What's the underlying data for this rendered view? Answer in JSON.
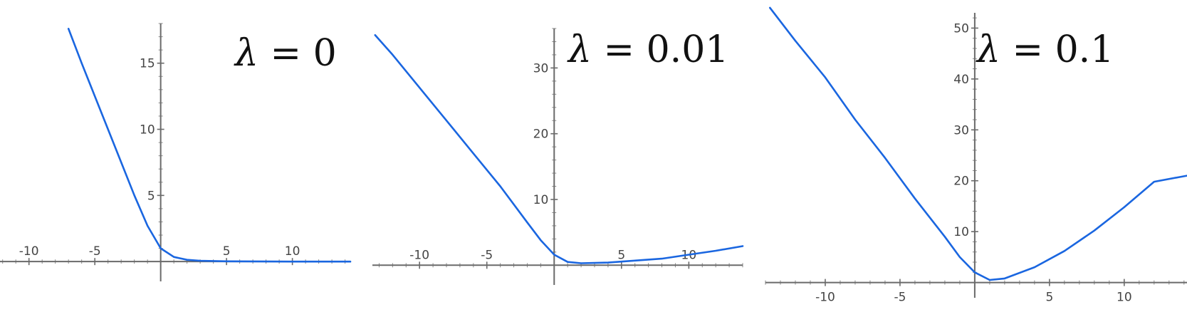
{
  "figure": {
    "curve_color": "#1a66e0"
  },
  "chart_data": [
    {
      "type": "line",
      "title": "λ = 0",
      "title_symbol": "λ",
      "title_rest": " = 0",
      "lambda": 0,
      "xlim": [
        -12.2,
        14.4
      ],
      "ylim": [
        -1.5,
        18.0
      ],
      "x_ticks": [
        -10,
        -5,
        5,
        10
      ],
      "x_tick_labels": [
        "-10",
        "-5",
        "5",
        "10"
      ],
      "y_ticks": [
        5,
        10,
        15
      ],
      "y_tick_labels": [
        "5",
        "10",
        "15"
      ],
      "series": [
        {
          "x": [
            -7,
            -6,
            -5,
            -4,
            -3,
            -2,
            -1,
            0,
            1,
            2,
            3,
            5,
            10,
            14.4
          ],
          "y": [
            17.6,
            15.0,
            12.5,
            10.0,
            7.5,
            5.0,
            2.7,
            1.0,
            0.35,
            0.13,
            0.06,
            0.02,
            0.0,
            0.0
          ]
        }
      ]
    },
    {
      "type": "line",
      "title": "λ = 0.01",
      "title_symbol": "λ",
      "title_rest": " = 0.01",
      "lambda": 0.01,
      "xlim": [
        -13.5,
        14.0
      ],
      "ylim": [
        -3.0,
        36.0
      ],
      "x_ticks": [
        -10,
        -5,
        5,
        10
      ],
      "x_tick_labels": [
        "-10",
        "-5",
        "5",
        "10"
      ],
      "y_ticks": [
        10,
        20,
        30
      ],
      "y_tick_labels": [
        "10",
        "20",
        "30"
      ],
      "series": [
        {
          "x": [
            -13.3,
            -12,
            -10,
            -8,
            -6,
            -4,
            -2,
            -1,
            0,
            1,
            2,
            4,
            6,
            8,
            10,
            12,
            14
          ],
          "y": [
            35.0,
            32.0,
            27.0,
            22.0,
            17.0,
            12.0,
            6.5,
            3.8,
            1.6,
            0.5,
            0.3,
            0.4,
            0.7,
            1.0,
            1.6,
            2.2,
            2.9
          ]
        }
      ]
    },
    {
      "type": "line",
      "title": "λ = 0.1",
      "title_symbol": "λ",
      "title_rest": " = 0.1",
      "lambda": 0.1,
      "xlim": [
        -14.0,
        14.2
      ],
      "ylim": [
        -3.0,
        53.0
      ],
      "x_ticks": [
        -10,
        -5,
        5,
        10
      ],
      "x_tick_labels": [
        "-10",
        "-5",
        "5",
        "10"
      ],
      "y_ticks": [
        10,
        20,
        30,
        40,
        50
      ],
      "y_tick_labels": [
        "10",
        "20",
        "30",
        "40",
        "50"
      ],
      "series": [
        {
          "x": [
            -13.7,
            -12,
            -10,
            -8,
            -6,
            -4,
            -2,
            -1,
            0,
            1,
            2,
            4,
            6,
            8,
            10,
            12,
            14.2
          ],
          "y": [
            54.0,
            47.5,
            40.3,
            32.0,
            24.5,
            16.5,
            9.0,
            5.0,
            2.0,
            0.5,
            0.8,
            3.0,
            6.2,
            10.2,
            14.8,
            19.8,
            21.0
          ]
        }
      ]
    }
  ]
}
